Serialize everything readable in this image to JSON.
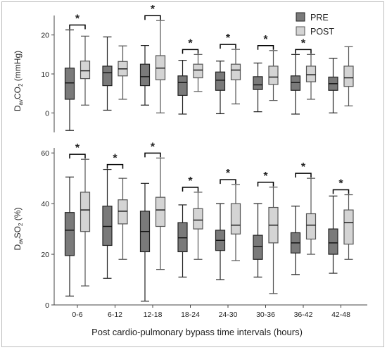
{
  "chart_data": [
    {
      "type": "boxplot",
      "ylabel": {
        "main": "D",
        "sub": "av",
        "main2": "CO",
        "sub2": "2",
        "rest": " (mmHg)"
      },
      "ylim": [
        -5,
        25
      ],
      "yticks": [
        0,
        10,
        20
      ],
      "categories": [
        "0-6",
        "6-12",
        "12-18",
        "18-24",
        "24-30",
        "30-36",
        "36-42",
        "42-48"
      ],
      "significance": [
        true,
        false,
        true,
        true,
        true,
        true,
        true,
        false
      ],
      "significance_label": "*",
      "series": [
        {
          "name": "PRE",
          "boxes": [
            {
              "min": -4.5,
              "q1": 3.5,
              "median": 7.7,
              "q3": 11.5,
              "max": 21.3
            },
            {
              "min": 0.7,
              "q1": 7.0,
              "median": 10.3,
              "q3": 12.0,
              "max": 19.5
            },
            {
              "min": 2.0,
              "q1": 7.0,
              "median": 9.3,
              "q3": 12.5,
              "max": 17.3
            },
            {
              "min": -0.3,
              "q1": 4.5,
              "median": 7.8,
              "q3": 9.5,
              "max": 13.5
            },
            {
              "min": -0.2,
              "q1": 5.8,
              "median": 8.4,
              "q3": 10.5,
              "max": 13.3
            },
            {
              "min": 0.3,
              "q1": 6.0,
              "median": 7.2,
              "q3": 9.3,
              "max": 12.8
            },
            {
              "min": -0.3,
              "q1": 5.8,
              "median": 7.8,
              "q3": 9.5,
              "max": 15.0
            },
            {
              "min": 0.0,
              "q1": 5.8,
              "median": 7.5,
              "q3": 9.2,
              "max": 14.0
            }
          ]
        },
        {
          "name": "POST",
          "boxes": [
            {
              "min": 2.0,
              "q1": 8.8,
              "median": 10.8,
              "q3": 13.3,
              "max": 19.7
            },
            {
              "min": 3.5,
              "q1": 9.5,
              "median": 11.3,
              "q3": 13.2,
              "max": 17.2
            },
            {
              "min": 0.0,
              "q1": 8.5,
              "median": 11.5,
              "q3": 14.7,
              "max": 23.7
            },
            {
              "min": 5.5,
              "q1": 9.0,
              "median": 11.0,
              "q3": 12.5,
              "max": 15.0
            },
            {
              "min": 2.3,
              "q1": 8.5,
              "median": 11.0,
              "q3": 12.5,
              "max": 16.3
            },
            {
              "min": 3.2,
              "q1": 7.3,
              "median": 9.2,
              "q3": 12.0,
              "max": 16.0
            },
            {
              "min": 3.5,
              "q1": 8.0,
              "median": 9.8,
              "q3": 12.0,
              "max": 15.0
            },
            {
              "min": 1.8,
              "q1": 6.8,
              "median": 9.0,
              "q3": 12.0,
              "max": 17.0
            }
          ]
        }
      ]
    },
    {
      "type": "boxplot",
      "ylabel": {
        "main": "D",
        "sub": "av",
        "main2": "SO",
        "sub2": "2",
        "rest": " (%)"
      },
      "ylim": [
        0,
        62
      ],
      "yticks": [
        0,
        20,
        40,
        60
      ],
      "categories": [
        "0-6",
        "6-12",
        "12-18",
        "18-24",
        "24-30",
        "30-36",
        "36-42",
        "42-48"
      ],
      "significance": [
        true,
        true,
        true,
        true,
        true,
        true,
        true,
        true
      ],
      "significance_label": "*",
      "series": [
        {
          "name": "PRE",
          "boxes": [
            {
              "min": 3.5,
              "q1": 19.5,
              "median": 29.5,
              "q3": 36.5,
              "max": 50.5
            },
            {
              "min": 10.5,
              "q1": 23.5,
              "median": 31.0,
              "q3": 39.0,
              "max": 53.5
            },
            {
              "min": 1.5,
              "q1": 21.0,
              "median": 29.0,
              "q3": 37.0,
              "max": 48.0
            },
            {
              "min": 11.0,
              "q1": 21.0,
              "median": 26.5,
              "q3": 32.5,
              "max": 39.5
            },
            {
              "min": 10.0,
              "q1": 21.5,
              "median": 25.5,
              "q3": 29.5,
              "max": 40.0
            },
            {
              "min": 11.0,
              "q1": 18.0,
              "median": 23.0,
              "q3": 27.5,
              "max": 40.0
            },
            {
              "min": 12.0,
              "q1": 20.5,
              "median": 24.5,
              "q3": 28.5,
              "max": 39.0
            },
            {
              "min": 12.5,
              "q1": 20.0,
              "median": 24.5,
              "q3": 30.0,
              "max": 43.0
            }
          ]
        },
        {
          "name": "POST",
          "boxes": [
            {
              "min": 7.5,
              "q1": 29.0,
              "median": 37.5,
              "q3": 44.5,
              "max": 57.5
            },
            {
              "min": 18.0,
              "q1": 32.0,
              "median": 37.0,
              "q3": 41.5,
              "max": 50.0
            },
            {
              "min": 14.0,
              "q1": 31.0,
              "median": 37.5,
              "q3": 42.5,
              "max": 58.0
            },
            {
              "min": 18.0,
              "q1": 30.0,
              "median": 33.5,
              "q3": 38.0,
              "max": 44.5
            },
            {
              "min": 17.5,
              "q1": 28.0,
              "median": 31.5,
              "q3": 40.0,
              "max": 47.5
            },
            {
              "min": 4.5,
              "q1": 24.5,
              "median": 31.5,
              "q3": 38.5,
              "max": 46.5
            },
            {
              "min": 20.0,
              "q1": 26.0,
              "median": 31.5,
              "q3": 36.0,
              "max": 50.0
            },
            {
              "min": 18.0,
              "q1": 24.0,
              "median": 32.5,
              "q3": 37.5,
              "max": 43.5
            }
          ]
        }
      ]
    }
  ],
  "shared": {
    "xlabel": "Post cardio-pulmonary bypass time intervals (hours)",
    "legend": [
      {
        "name": "PRE",
        "color": "#7a7a7a"
      },
      {
        "name": "POST",
        "color": "#d4d4d4"
      }
    ],
    "legend_position": "top-right",
    "colors": {
      "pre_fill": "#7a7a7a",
      "post_fill": "#d4d4d4",
      "pre_stroke": "#222222",
      "post_stroke": "#555555",
      "bracket": "#000000"
    }
  }
}
